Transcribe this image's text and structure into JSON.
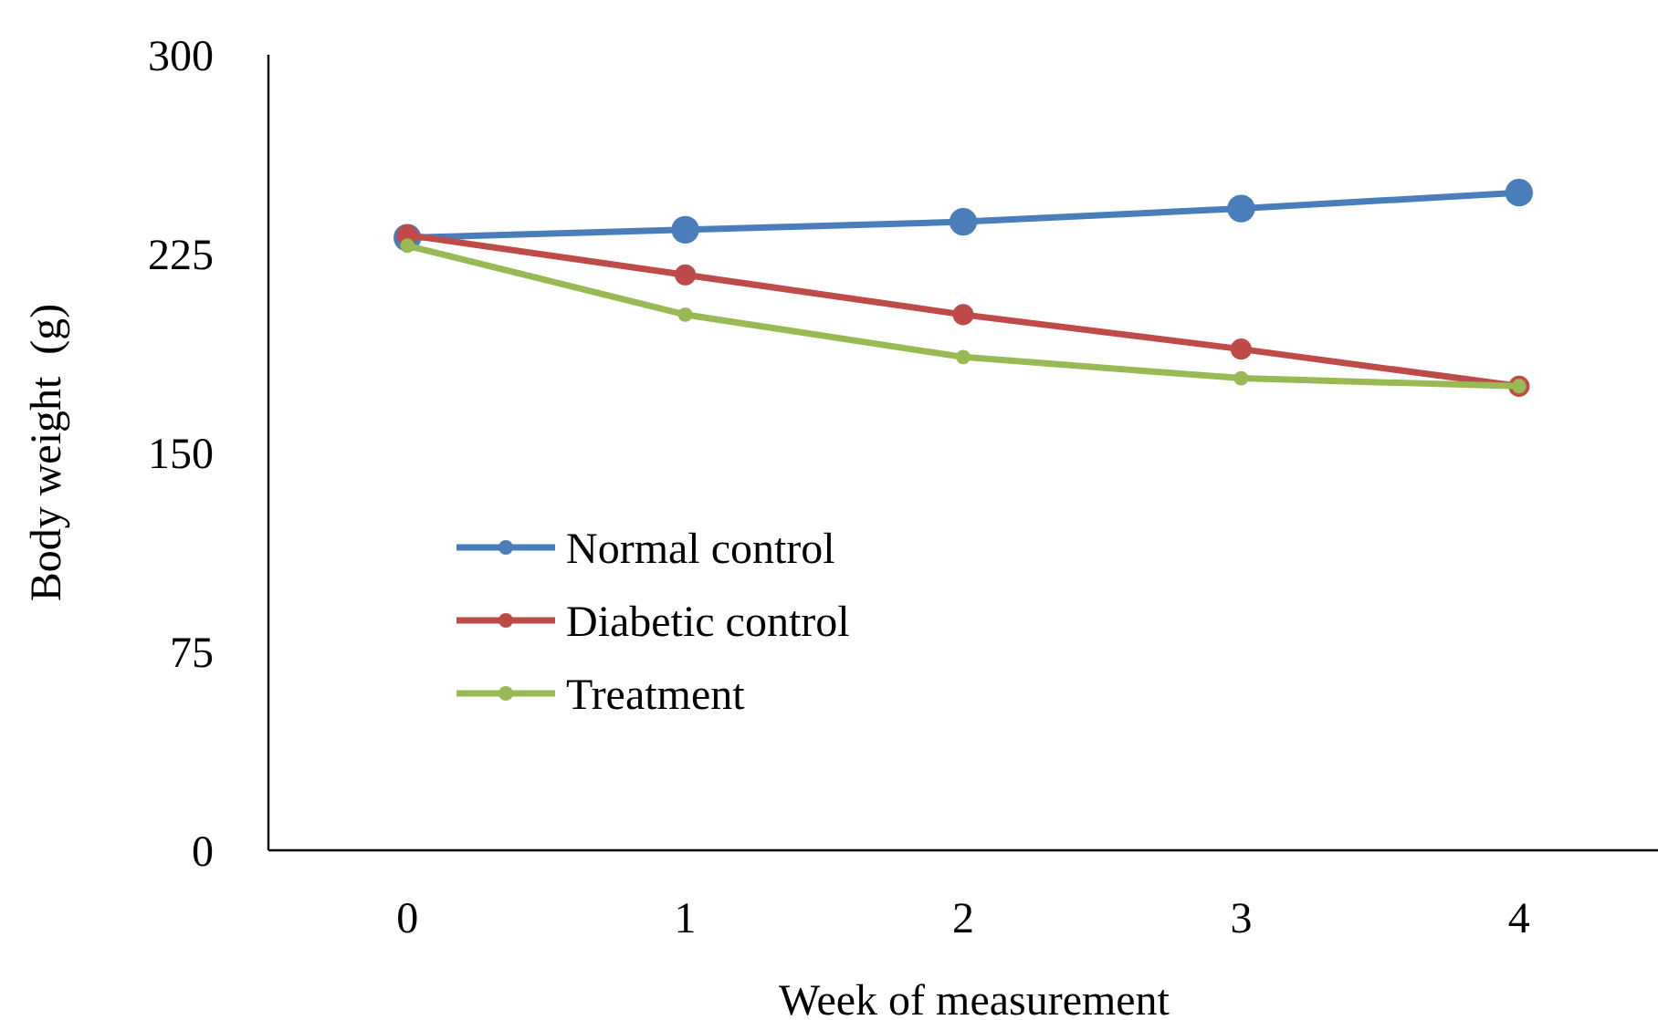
{
  "chart_data": {
    "type": "line",
    "xlabel": "Week of measurement",
    "ylabel": "Body weight  (g)",
    "categories": [
      "0",
      "1",
      "2",
      "3",
      "4"
    ],
    "series": [
      {
        "name": "Normal control",
        "color": "#4a7ebb",
        "values": [
          231,
          234,
          237,
          242,
          248
        ]
      },
      {
        "name": "Diabetic control",
        "color": "#be4b48",
        "values": [
          232,
          217,
          202,
          189,
          175
        ]
      },
      {
        "name": "Treatment",
        "color": "#98b954",
        "values": [
          228,
          202,
          186,
          178,
          175
        ]
      }
    ],
    "ylim": [
      0,
      300
    ],
    "yticks": [
      0,
      75,
      150,
      225,
      300
    ],
    "grid": false,
    "legend": "center left",
    "marker": "circle",
    "line_style": "solid"
  }
}
